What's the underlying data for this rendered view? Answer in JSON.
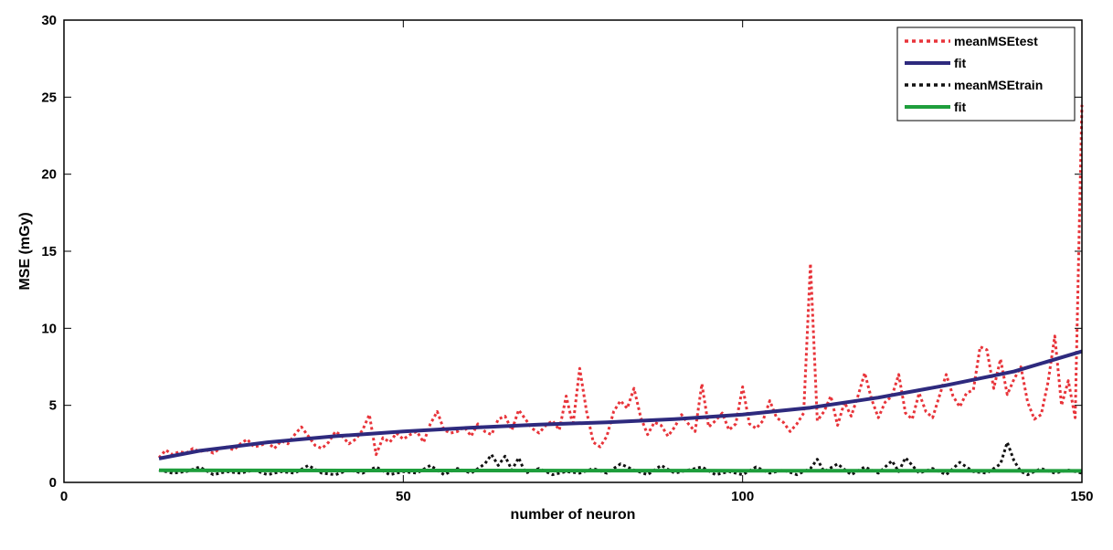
{
  "chart_data": {
    "type": "line",
    "title": "",
    "xlabel": "number of neuron",
    "ylabel": "MSE (mGy)",
    "xlim": [
      0,
      150
    ],
    "ylim": [
      0,
      30
    ],
    "xticks": [
      "0",
      "50",
      "100",
      "150"
    ],
    "yticks": [
      "0",
      "5",
      "10",
      "15",
      "20",
      "25",
      "30"
    ],
    "grid": false,
    "legend": "top-right",
    "series": [
      {
        "name": "meanMSEtest",
        "color": "#e8343a",
        "style": "dotted",
        "x": [
          14,
          15,
          16,
          17,
          18,
          19,
          20,
          21,
          22,
          23,
          24,
          25,
          26,
          27,
          28,
          29,
          30,
          31,
          32,
          33,
          34,
          35,
          36,
          37,
          38,
          39,
          40,
          41,
          42,
          43,
          44,
          45,
          46,
          47,
          48,
          49,
          50,
          51,
          52,
          53,
          54,
          55,
          56,
          57,
          58,
          59,
          60,
          61,
          62,
          63,
          64,
          65,
          66,
          67,
          68,
          69,
          70,
          71,
          72,
          73,
          74,
          75,
          76,
          77,
          78,
          79,
          80,
          81,
          82,
          83,
          84,
          85,
          86,
          87,
          88,
          89,
          90,
          91,
          92,
          93,
          94,
          95,
          96,
          97,
          98,
          99,
          100,
          101,
          102,
          103,
          104,
          105,
          106,
          107,
          108,
          109,
          110,
          111,
          112,
          113,
          114,
          115,
          116,
          117,
          118,
          119,
          120,
          121,
          122,
          123,
          124,
          125,
          126,
          127,
          128,
          129,
          130,
          131,
          132,
          133,
          134,
          135,
          136,
          137,
          138,
          139,
          140,
          141,
          142,
          143,
          144,
          145,
          146,
          147,
          148,
          149,
          150
        ],
        "y": [
          1.6,
          2.1,
          1.8,
          2.0,
          1.9,
          2.2,
          2.0,
          2.1,
          1.9,
          2.2,
          2.3,
          2.1,
          2.5,
          2.8,
          2.3,
          2.4,
          2.6,
          2.2,
          2.7,
          2.5,
          3.1,
          3.6,
          3.0,
          2.4,
          2.2,
          2.6,
          3.3,
          3.0,
          2.5,
          2.8,
          3.4,
          4.4,
          1.8,
          2.9,
          2.6,
          3.2,
          2.8,
          3.1,
          3.3,
          2.6,
          3.8,
          4.6,
          3.4,
          3.2,
          3.3,
          3.6,
          3.0,
          3.8,
          3.3,
          3.1,
          4.1,
          4.3,
          3.4,
          4.7,
          4.1,
          3.5,
          3.2,
          3.7,
          4.0,
          3.4,
          5.6,
          3.7,
          7.4,
          4.6,
          2.6,
          2.3,
          3.0,
          4.6,
          5.3,
          4.8,
          6.1,
          4.2,
          3.1,
          3.9,
          3.7,
          3.0,
          3.6,
          4.4,
          3.8,
          3.3,
          6.4,
          3.6,
          4.0,
          4.5,
          3.4,
          3.8,
          6.2,
          3.8,
          3.5,
          4.0,
          5.3,
          4.2,
          3.9,
          3.3,
          3.8,
          4.5,
          14.2,
          4.0,
          4.6,
          5.6,
          3.7,
          5.2,
          4.3,
          5.6,
          7.1,
          5.4,
          4.2,
          5.2,
          5.6,
          7.0,
          4.5,
          4.1,
          5.8,
          4.6,
          4.2,
          5.6,
          7.0,
          5.6,
          4.9,
          5.8,
          6.0,
          8.8,
          8.6,
          6.1,
          8.0,
          5.7,
          6.7,
          7.5,
          5.2,
          4.1,
          4.4,
          6.5,
          9.5,
          5.0,
          6.6,
          4.2,
          24.5
        ]
      },
      {
        "name": "fit",
        "color": "#2e2a7e",
        "style": "solid",
        "x": [
          14,
          20,
          30,
          40,
          50,
          60,
          70,
          80,
          90,
          100,
          110,
          120,
          130,
          140,
          150
        ],
        "y": [
          1.55,
          2.05,
          2.6,
          3.0,
          3.3,
          3.55,
          3.75,
          3.9,
          4.1,
          4.4,
          4.85,
          5.5,
          6.3,
          7.2,
          8.5
        ]
      },
      {
        "name": "meanMSEtrain",
        "color": "#111111",
        "style": "dotted",
        "x": [
          14,
          16,
          18,
          20,
          22,
          24,
          26,
          28,
          30,
          32,
          34,
          36,
          38,
          40,
          42,
          44,
          46,
          48,
          50,
          52,
          54,
          56,
          58,
          60,
          62,
          63,
          64,
          65,
          66,
          67,
          68,
          70,
          72,
          74,
          76,
          78,
          80,
          82,
          84,
          86,
          88,
          90,
          92,
          94,
          96,
          98,
          100,
          102,
          104,
          106,
          108,
          110,
          111,
          112,
          114,
          116,
          118,
          120,
          122,
          123,
          124,
          126,
          128,
          130,
          132,
          134,
          136,
          138,
          139,
          140,
          141,
          142,
          144,
          146,
          148,
          150
        ],
        "y": [
          0.8,
          0.6,
          0.7,
          1.0,
          0.5,
          0.7,
          0.6,
          0.8,
          0.5,
          0.7,
          0.6,
          1.1,
          0.6,
          0.5,
          0.8,
          0.6,
          1.0,
          0.5,
          0.7,
          0.6,
          1.1,
          0.5,
          0.9,
          0.6,
          1.2,
          1.8,
          1.1,
          1.7,
          0.8,
          1.6,
          0.6,
          0.9,
          0.5,
          0.7,
          0.6,
          0.9,
          0.6,
          1.2,
          0.8,
          0.5,
          1.1,
          0.6,
          0.8,
          1.0,
          0.5,
          0.7,
          0.5,
          1.0,
          0.6,
          0.8,
          0.5,
          0.9,
          1.5,
          0.7,
          1.2,
          0.5,
          1.0,
          0.6,
          1.4,
          0.7,
          1.6,
          0.6,
          0.9,
          0.5,
          1.3,
          0.7,
          0.6,
          1.2,
          2.6,
          1.4,
          0.7,
          0.5,
          0.9,
          0.6,
          0.8,
          0.6
        ]
      },
      {
        "name": "fit",
        "color": "#1e9e3c",
        "style": "solid",
        "x": [
          14,
          50,
          100,
          150
        ],
        "y": [
          0.78,
          0.77,
          0.76,
          0.75
        ]
      }
    ]
  }
}
